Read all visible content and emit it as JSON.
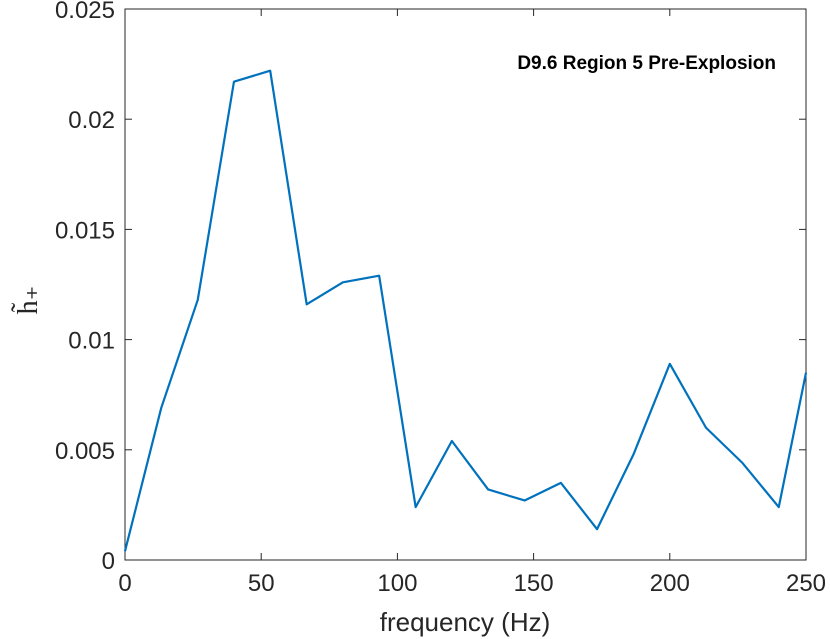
{
  "chart_data": {
    "type": "line",
    "title": "",
    "annotation": "D9.6 Region 5 Pre-Explosion",
    "xlabel": "frequency (Hz)",
    "ylabel": "h̃₊",
    "xlim": [
      0,
      250
    ],
    "ylim": [
      0,
      0.025
    ],
    "xticks": [
      0,
      50,
      100,
      150,
      200,
      250
    ],
    "xtick_labels": [
      "0",
      "50",
      "100",
      "150",
      "200",
      "250"
    ],
    "yticks": [
      0,
      0.005,
      0.01,
      0.015,
      0.02,
      0.025
    ],
    "ytick_labels": [
      "0",
      "0.005",
      "0.01",
      "0.015",
      "0.02",
      "0.025"
    ],
    "grid": false,
    "line_color": "#0072BD",
    "series": [
      {
        "x": [
          0,
          13.3,
          26.7,
          40,
          53.3,
          66.7,
          80,
          93.3,
          106.7,
          120,
          133.3,
          146.7,
          160,
          173.3,
          186.7,
          200,
          213.3,
          226.7,
          240,
          250
        ],
        "y": [
          0.0004,
          0.0069,
          0.0118,
          0.0217,
          0.0222,
          0.0116,
          0.0126,
          0.0129,
          0.0024,
          0.0054,
          0.0032,
          0.0027,
          0.0035,
          0.0014,
          0.0048,
          0.0089,
          0.006,
          0.0044,
          0.0024,
          0.0085
        ]
      }
    ]
  }
}
